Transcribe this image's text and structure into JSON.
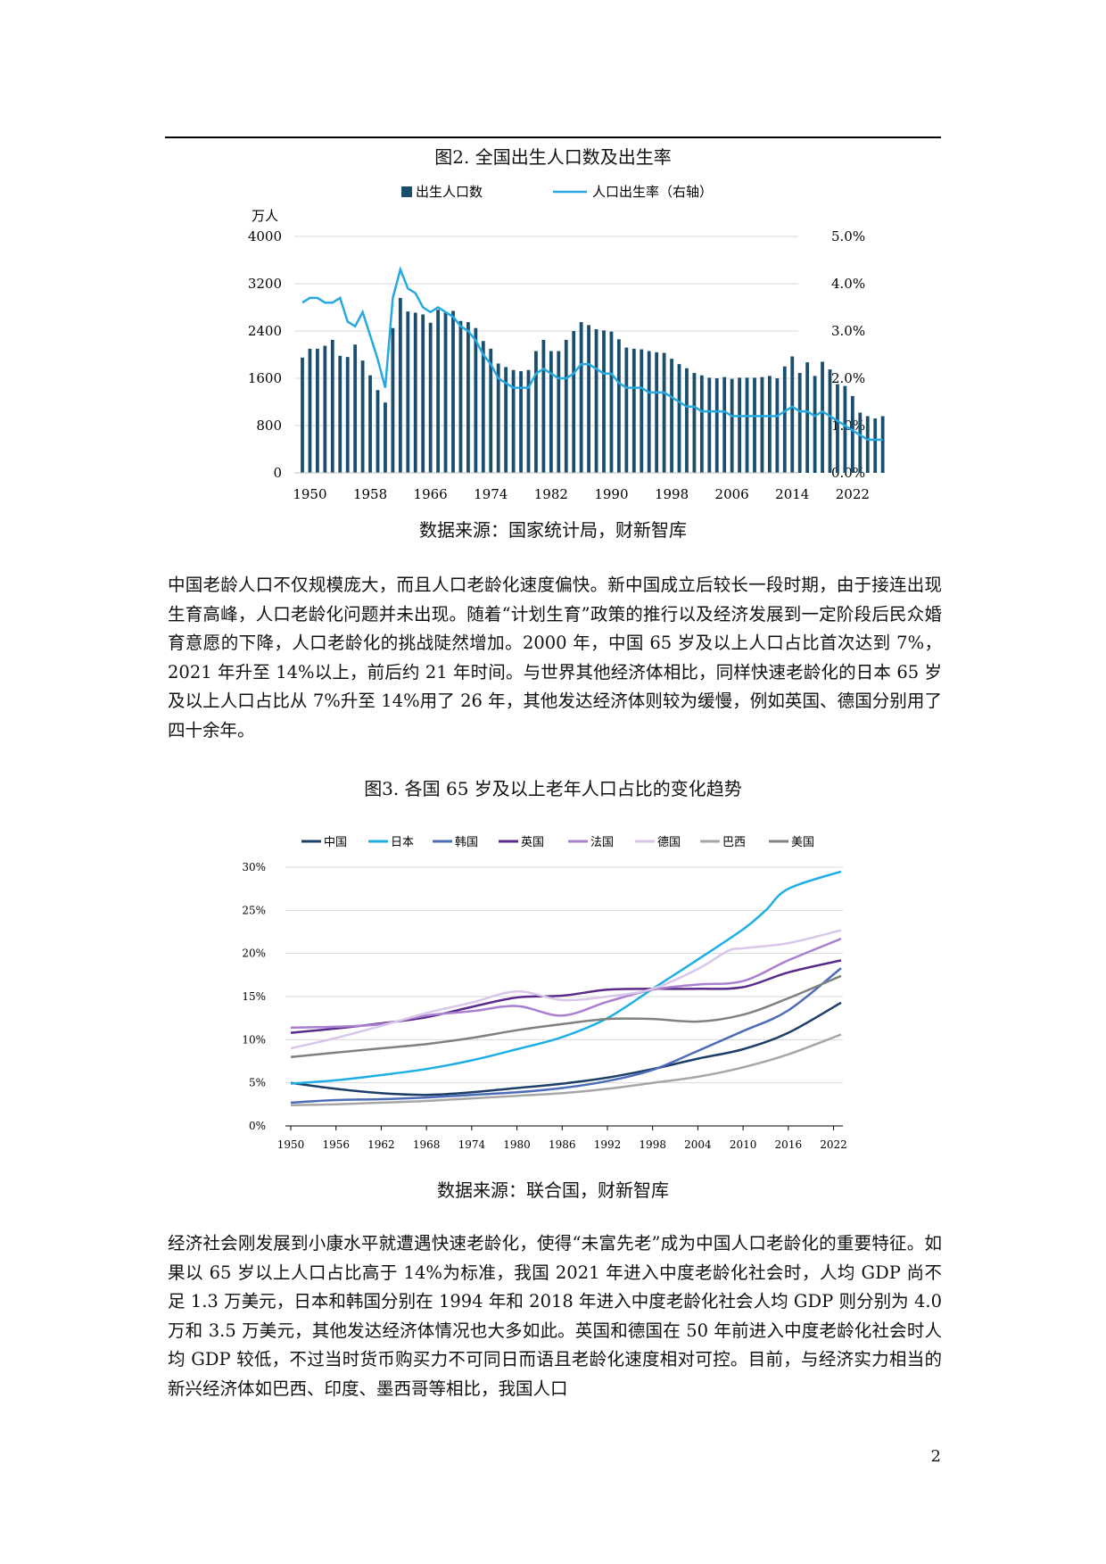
{
  "figure2": {
    "title": "图2. 全国出生人口数及出生率",
    "source": "数据来源：国家统计局，财新智库",
    "chart_data": {
      "type": "bar",
      "left_unit": "万人",
      "legend": [
        "出生人口数",
        "人口出生率（右轴）"
      ],
      "y_left_ticks": [
        "4000",
        "3200",
        "2400",
        "1600",
        "800",
        "0"
      ],
      "y_right_ticks": [
        "5.0%",
        "4.0%",
        "3.0%",
        "2.0%",
        "1.0%",
        "0.0%"
      ],
      "x_ticks": [
        "1950",
        "1958",
        "1966",
        "1974",
        "1982",
        "1990",
        "1998",
        "2006",
        "2014",
        "2022"
      ],
      "ylim_left": [
        0,
        4000
      ],
      "ylim_right": [
        0,
        5.0
      ],
      "x_start": 1949,
      "births": [
        1950,
        2100,
        2100,
        2150,
        2250,
        1980,
        1960,
        2170,
        1900,
        1650,
        1400,
        1190,
        2450,
        2960,
        2730,
        2710,
        2680,
        2540,
        2760,
        2710,
        2740,
        2570,
        2550,
        2450,
        2230,
        2100,
        1850,
        1790,
        1740,
        1720,
        1740,
        2060,
        2250,
        2060,
        2060,
        2250,
        2400,
        2550,
        2500,
        2430,
        2410,
        2390,
        2260,
        2120,
        2100,
        2090,
        2060,
        2040,
        2030,
        1930,
        1840,
        1770,
        1690,
        1650,
        1610,
        1600,
        1620,
        1590,
        1610,
        1610,
        1610,
        1620,
        1640,
        1600,
        1800,
        1970,
        1690,
        1870,
        1640,
        1880,
        1750,
        1500,
        1470,
        1300,
        1020,
        960,
        920,
        960
      ],
      "birth_rate": [
        3.6,
        3.7,
        3.7,
        3.6,
        3.6,
        3.7,
        3.2,
        3.1,
        3.4,
        2.9,
        2.4,
        1.8,
        3.7,
        4.3,
        3.9,
        3.8,
        3.5,
        3.4,
        3.5,
        3.4,
        3.3,
        3.1,
        3.0,
        2.8,
        2.5,
        2.3,
        2.0,
        1.9,
        1.8,
        1.8,
        1.8,
        2.1,
        2.2,
        2.1,
        2.0,
        2.0,
        2.1,
        2.3,
        2.3,
        2.2,
        2.1,
        2.1,
        1.9,
        1.8,
        1.8,
        1.8,
        1.7,
        1.7,
        1.7,
        1.6,
        1.5,
        1.4,
        1.4,
        1.3,
        1.3,
        1.3,
        1.3,
        1.2,
        1.2,
        1.2,
        1.2,
        1.2,
        1.2,
        1.2,
        1.3,
        1.4,
        1.3,
        1.3,
        1.2,
        1.3,
        1.2,
        1.1,
        1.0,
        0.9,
        0.8,
        0.7,
        0.7,
        0.7
      ],
      "colors": {
        "bar": "#1a4e6e",
        "line": "#26a9e0"
      }
    }
  },
  "paragraph1": "中国老龄人口不仅规模庞大，而且人口老龄化速度偏快。新中国成立后较长一段时期，由于接连出现生育高峰，人口老龄化问题并未出现。随着“计划生育”政策的推行以及经济发展到一定阶段后民众婚育意愿的下降，人口老龄化的挑战陡然增加。2000 年，中国 65 岁及以上人口占比首次达到 7%，2021 年升至 14%以上，前后约 21 年时间。与世界其他经济体相比，同样快速老龄化的日本 65 岁及以上人口占比从 7%升至 14%用了 26 年，其他发达经济体则较为缓慢，例如英国、德国分别用了四十余年。",
  "figure3": {
    "title": "图3. 各国 65 岁及以上老年人口占比的变化趋势",
    "source": "数据来源：联合国，财新智库",
    "chart_data": {
      "type": "line",
      "x_ticks": [
        "1950",
        "1956",
        "1962",
        "1968",
        "1974",
        "1980",
        "1986",
        "1992",
        "1998",
        "2004",
        "2010",
        "2016",
        "2022"
      ],
      "y_ticks": [
        "30%",
        "25%",
        "20%",
        "15%",
        "10%",
        "5%",
        "0%"
      ],
      "ylim": [
        0,
        30
      ],
      "xlim": [
        1950,
        2023
      ],
      "series": [
        {
          "name": "中国",
          "color": "#1b3f66",
          "points": [
            [
              1950,
              5.0
            ],
            [
              1956,
              4.3
            ],
            [
              1962,
              3.8
            ],
            [
              1968,
              3.6
            ],
            [
              1974,
              3.9
            ],
            [
              1980,
              4.4
            ],
            [
              1986,
              4.9
            ],
            [
              1992,
              5.6
            ],
            [
              1998,
              6.6
            ],
            [
              2004,
              7.8
            ],
            [
              2010,
              8.9
            ],
            [
              2016,
              10.8
            ],
            [
              2023,
              14.3
            ]
          ]
        },
        {
          "name": "日本",
          "color": "#1daee4",
          "points": [
            [
              1950,
              4.9
            ],
            [
              1956,
              5.3
            ],
            [
              1962,
              5.9
            ],
            [
              1968,
              6.6
            ],
            [
              1974,
              7.6
            ],
            [
              1980,
              8.9
            ],
            [
              1986,
              10.3
            ],
            [
              1992,
              12.5
            ],
            [
              1998,
              15.9
            ],
            [
              2004,
              19.3
            ],
            [
              2010,
              22.8
            ],
            [
              2013,
              25.0
            ],
            [
              2016,
              27.5
            ],
            [
              2023,
              29.5
            ]
          ]
        },
        {
          "name": "韩国",
          "color": "#4b6cb7",
          "points": [
            [
              1950,
              2.7
            ],
            [
              1956,
              3.0
            ],
            [
              1962,
              3.1
            ],
            [
              1968,
              3.3
            ],
            [
              1974,
              3.6
            ],
            [
              1980,
              3.9
            ],
            [
              1986,
              4.4
            ],
            [
              1992,
              5.2
            ],
            [
              1998,
              6.5
            ],
            [
              2004,
              8.7
            ],
            [
              2010,
              11.0
            ],
            [
              2016,
              13.4
            ],
            [
              2023,
              18.3
            ]
          ]
        },
        {
          "name": "英国",
          "color": "#5a2a8a",
          "points": [
            [
              1950,
              10.8
            ],
            [
              1956,
              11.3
            ],
            [
              1962,
              11.9
            ],
            [
              1968,
              12.6
            ],
            [
              1974,
              13.8
            ],
            [
              1980,
              14.9
            ],
            [
              1986,
              15.1
            ],
            [
              1992,
              15.8
            ],
            [
              1998,
              15.9
            ],
            [
              2004,
              15.9
            ],
            [
              2010,
              16.1
            ],
            [
              2016,
              17.8
            ],
            [
              2023,
              19.2
            ]
          ]
        },
        {
          "name": "法国",
          "color": "#a97fd0",
          "points": [
            [
              1950,
              11.4
            ],
            [
              1956,
              11.5
            ],
            [
              1962,
              11.8
            ],
            [
              1968,
              12.8
            ],
            [
              1974,
              13.3
            ],
            [
              1980,
              13.9
            ],
            [
              1986,
              12.8
            ],
            [
              1992,
              14.4
            ],
            [
              1998,
              15.8
            ],
            [
              2004,
              16.4
            ],
            [
              2010,
              16.8
            ],
            [
              2016,
              19.2
            ],
            [
              2023,
              21.7
            ]
          ]
        },
        {
          "name": "德国",
          "color": "#d9c6e9",
          "points": [
            [
              1950,
              9.0
            ],
            [
              1956,
              10.2
            ],
            [
              1962,
              11.6
            ],
            [
              1968,
              13.1
            ],
            [
              1974,
              14.3
            ],
            [
              1980,
              15.6
            ],
            [
              1986,
              14.6
            ],
            [
              1992,
              15.0
            ],
            [
              1998,
              15.9
            ],
            [
              2004,
              18.2
            ],
            [
              2008,
              20.3
            ],
            [
              2010,
              20.6
            ],
            [
              2016,
              21.2
            ],
            [
              2023,
              22.7
            ]
          ]
        },
        {
          "name": "巴西",
          "color": "#a6a6a6",
          "points": [
            [
              1950,
              2.4
            ],
            [
              1956,
              2.5
            ],
            [
              1962,
              2.7
            ],
            [
              1968,
              2.9
            ],
            [
              1974,
              3.2
            ],
            [
              1980,
              3.5
            ],
            [
              1986,
              3.8
            ],
            [
              1992,
              4.3
            ],
            [
              1998,
              5.0
            ],
            [
              2004,
              5.7
            ],
            [
              2010,
              6.8
            ],
            [
              2016,
              8.3
            ],
            [
              2023,
              10.6
            ]
          ]
        },
        {
          "name": "美国",
          "color": "#808080",
          "points": [
            [
              1950,
              8.0
            ],
            [
              1956,
              8.5
            ],
            [
              1962,
              9.0
            ],
            [
              1968,
              9.5
            ],
            [
              1974,
              10.2
            ],
            [
              1980,
              11.1
            ],
            [
              1986,
              11.8
            ],
            [
              1992,
              12.4
            ],
            [
              1998,
              12.4
            ],
            [
              2004,
              12.1
            ],
            [
              2010,
              12.9
            ],
            [
              2016,
              14.8
            ],
            [
              2023,
              17.4
            ]
          ]
        }
      ]
    }
  },
  "paragraph2": "经济社会刚发展到小康水平就遭遇快速老龄化，使得“未富先老”成为中国人口老龄化的重要特征。如果以 65 岁以上人口占比高于 14%为标准，我国 2021 年进入中度老龄化社会时，人均 GDP 尚不足 1.3 万美元，日本和韩国分别在 1994 年和 2018 年进入中度老龄化社会人均 GDP 则分别为 4.0 万和 3.5 万美元，其他发达经济体情况也大多如此。英国和德国在 50 年前进入中度老龄化社会时人均 GDP 较低，不过当时货币购买力不可同日而语且老龄化速度相对可控。目前，与经济实力相当的新兴经济体如巴西、印度、墨西哥等相比，我国人口",
  "page_number": "2"
}
